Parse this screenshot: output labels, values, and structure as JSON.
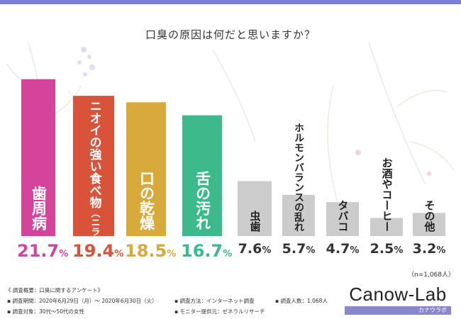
{
  "page": {
    "title": "口臭の原因は何だと思いますか？",
    "sample_size": "（n=1,068人）",
    "survey_overview": "《 調査概要：口臭に関するアンケート》",
    "survey_period": "▪ 調査期間：2020年6月29日（月）～ 2020年6月30日（火）",
    "survey_target": "▪ 調査対象：30代～50代の女性",
    "survey_method": "▪ 調査方法：インターネット調査",
    "survey_monitor": "▪ モニター提供元：ゼネラルリサーチ",
    "survey_count": "▪ 調査人数：1,068人",
    "logo_text": "Canow-Lab",
    "logo_sub": "カナウラボ"
  },
  "chart_data": {
    "type": "bar",
    "title": "口臭の原因は何だと思いますか？",
    "xlabel": "",
    "ylabel": "",
    "ylim": [
      0,
      22
    ],
    "unit": "%",
    "categories": [
      "歯周病",
      "ニオイの強い食べ物",
      "口の乾燥",
      "舌の汚れ",
      "虫歯",
      "ホルモンバランスの乱れ",
      "タバコ",
      "お酒やコーヒー",
      "その他"
    ],
    "category_subs": [
      "",
      "（ニラやニンニクなど）",
      "",
      "",
      "",
      "",
      "",
      "",
      ""
    ],
    "values": [
      21.7,
      19.4,
      18.5,
      16.7,
      7.6,
      5.7,
      4.7,
      2.5,
      3.2
    ],
    "colors": [
      "#d4449a",
      "#d9533b",
      "#d8a93b",
      "#3dba8c",
      "#cccccc",
      "#cccccc",
      "#cccccc",
      "#cccccc",
      "#cccccc"
    ],
    "value_colors": [
      "#d4449a",
      "#d9533b",
      "#d8a93b",
      "#3dba8c",
      "#333333",
      "#333333",
      "#333333",
      "#333333",
      "#333333"
    ],
    "label_colors": [
      "#ffffff",
      "#ffffff",
      "#ffffff",
      "#ffffff",
      "#222222",
      "#222222",
      "#222222",
      "#222222",
      "#222222"
    ]
  }
}
